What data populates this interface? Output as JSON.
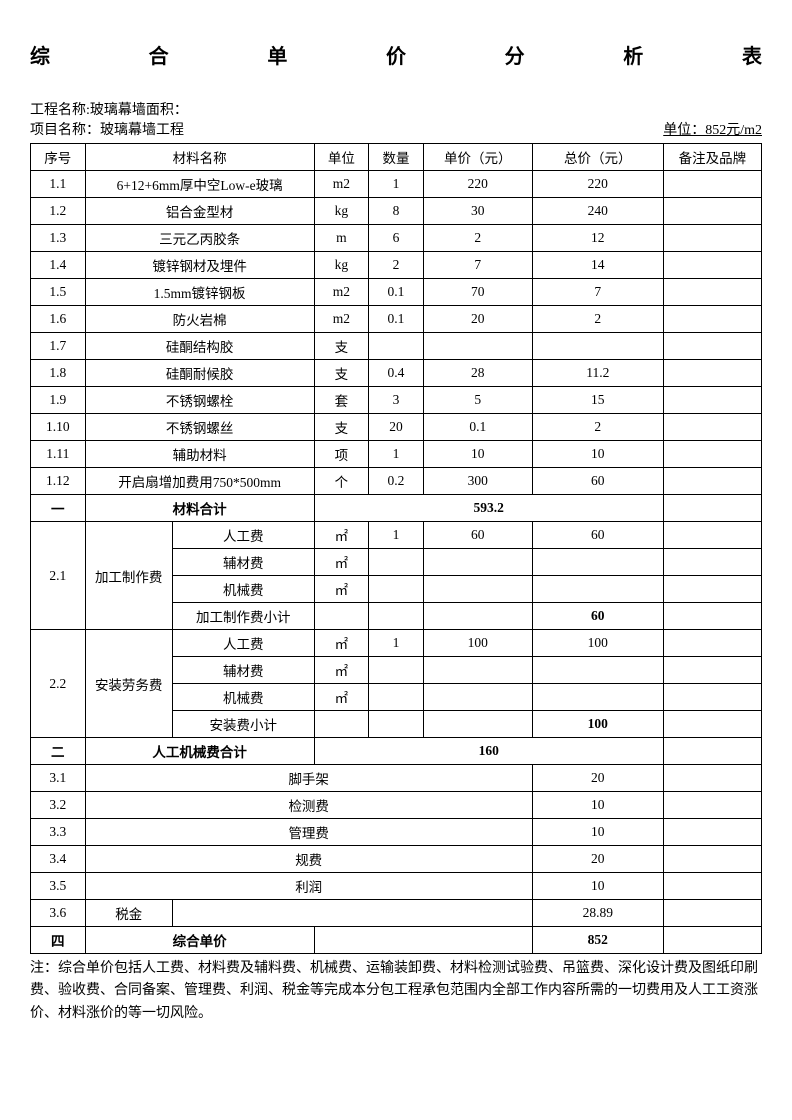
{
  "title_chars": [
    "综",
    "合",
    "单",
    "价",
    "分",
    "析",
    "表"
  ],
  "meta": {
    "project_name": "工程名称:玻璃幕墙面积：",
    "item_name": "项目名称：玻璃幕墙工程",
    "unit": "单位：852元/m2"
  },
  "headers": {
    "seq": "序号",
    "name": "材料名称",
    "unit": "单位",
    "qty": "数量",
    "price": "单价（元）",
    "total": "总价（元）",
    "remark": "备注及品牌"
  },
  "materials": [
    {
      "seq": "1.1",
      "name": "6+12+6mm厚中空Low-e玻璃",
      "unit": "m2",
      "qty": "1",
      "price": "220",
      "total": "220"
    },
    {
      "seq": "1.2",
      "name": "铝合金型材",
      "unit": "kg",
      "qty": "8",
      "price": "30",
      "total": "240"
    },
    {
      "seq": "1.3",
      "name": "三元乙丙胶条",
      "unit": "m",
      "qty": "6",
      "price": "2",
      "total": "12"
    },
    {
      "seq": "1.4",
      "name": "镀锌钢材及埋件",
      "unit": "kg",
      "qty": "2",
      "price": "7",
      "total": "14"
    },
    {
      "seq": "1.5",
      "name": "1.5mm镀锌钢板",
      "unit": "m2",
      "qty": "0.1",
      "price": "70",
      "total": "7"
    },
    {
      "seq": "1.6",
      "name": "防火岩棉",
      "unit": "m2",
      "qty": "0.1",
      "price": "20",
      "total": "2"
    },
    {
      "seq": "1.7",
      "name": "硅酮结构胶",
      "unit": "支",
      "qty": "",
      "price": "",
      "total": ""
    },
    {
      "seq": "1.8",
      "name": "硅酮耐候胶",
      "unit": "支",
      "qty": "0.4",
      "price": "28",
      "total": "11.2"
    },
    {
      "seq": "1.9",
      "name": "不锈钢螺栓",
      "unit": "套",
      "qty": "3",
      "price": "5",
      "total": "15"
    },
    {
      "seq": "1.10",
      "name": "不锈钢螺丝",
      "unit": "支",
      "qty": "20",
      "price": "0.1",
      "total": "2"
    },
    {
      "seq": "1.11",
      "name": "辅助材料",
      "unit": "项",
      "qty": "1",
      "price": "10",
      "total": "10"
    },
    {
      "seq": "1.12",
      "name": "开启扇增加费用750*500mm",
      "unit": "个",
      "qty": "0.2",
      "price": "300",
      "total": "60"
    }
  ],
  "material_subtotal": {
    "seq": "一",
    "label": "材料合计",
    "value": "593.2"
  },
  "section2_1": {
    "seq": "2.1",
    "group": "加工制作费",
    "rows": [
      {
        "name": "人工费",
        "unit": "㎡",
        "qty": "1",
        "price": "60",
        "total": "60"
      },
      {
        "name": "辅材费",
        "unit": "㎡",
        "qty": "",
        "price": "",
        "total": ""
      },
      {
        "name": "机械费",
        "unit": "㎡",
        "qty": "",
        "price": "",
        "total": ""
      }
    ],
    "subtotal": {
      "name": "加工制作费小计",
      "total": "60"
    }
  },
  "section2_2": {
    "seq": "2.2",
    "group": "安装劳务费",
    "rows": [
      {
        "name": "人工费",
        "unit": "㎡",
        "qty": "1",
        "price": "100",
        "total": "100"
      },
      {
        "name": "辅材费",
        "unit": "㎡",
        "qty": "",
        "price": "",
        "total": ""
      },
      {
        "name": "机械费",
        "unit": "㎡",
        "qty": "",
        "price": "",
        "total": ""
      }
    ],
    "subtotal": {
      "name": "安装费小计",
      "total": "100"
    }
  },
  "labor_subtotal": {
    "seq": "二",
    "label": "人工机械费合计",
    "value": "160"
  },
  "section3": [
    {
      "seq": "3.1",
      "name": "脚手架",
      "total": "20"
    },
    {
      "seq": "3.2",
      "name": "检测费",
      "total": "10"
    },
    {
      "seq": "3.3",
      "name": "管理费",
      "total": "10"
    },
    {
      "seq": "3.4",
      "name": "规费",
      "total": "20"
    },
    {
      "seq": "3.5",
      "name": "利润",
      "total": "10"
    }
  ],
  "tax": {
    "seq": "3.6",
    "name": "税金",
    "total": "28.89"
  },
  "final": {
    "seq": "四",
    "label": "综合单价",
    "value": "852"
  },
  "note": "注：综合单价包括人工费、材料费及辅料费、机械费、运输装卸费、材料检测试验费、吊篮费、深化设计费及图纸印刷费、验收费、合同备案、管理费、利润、税金等完成本分包工程承包范围内全部工作内容所需的一切费用及人工工资涨价、材料涨价的等一切风险。"
}
